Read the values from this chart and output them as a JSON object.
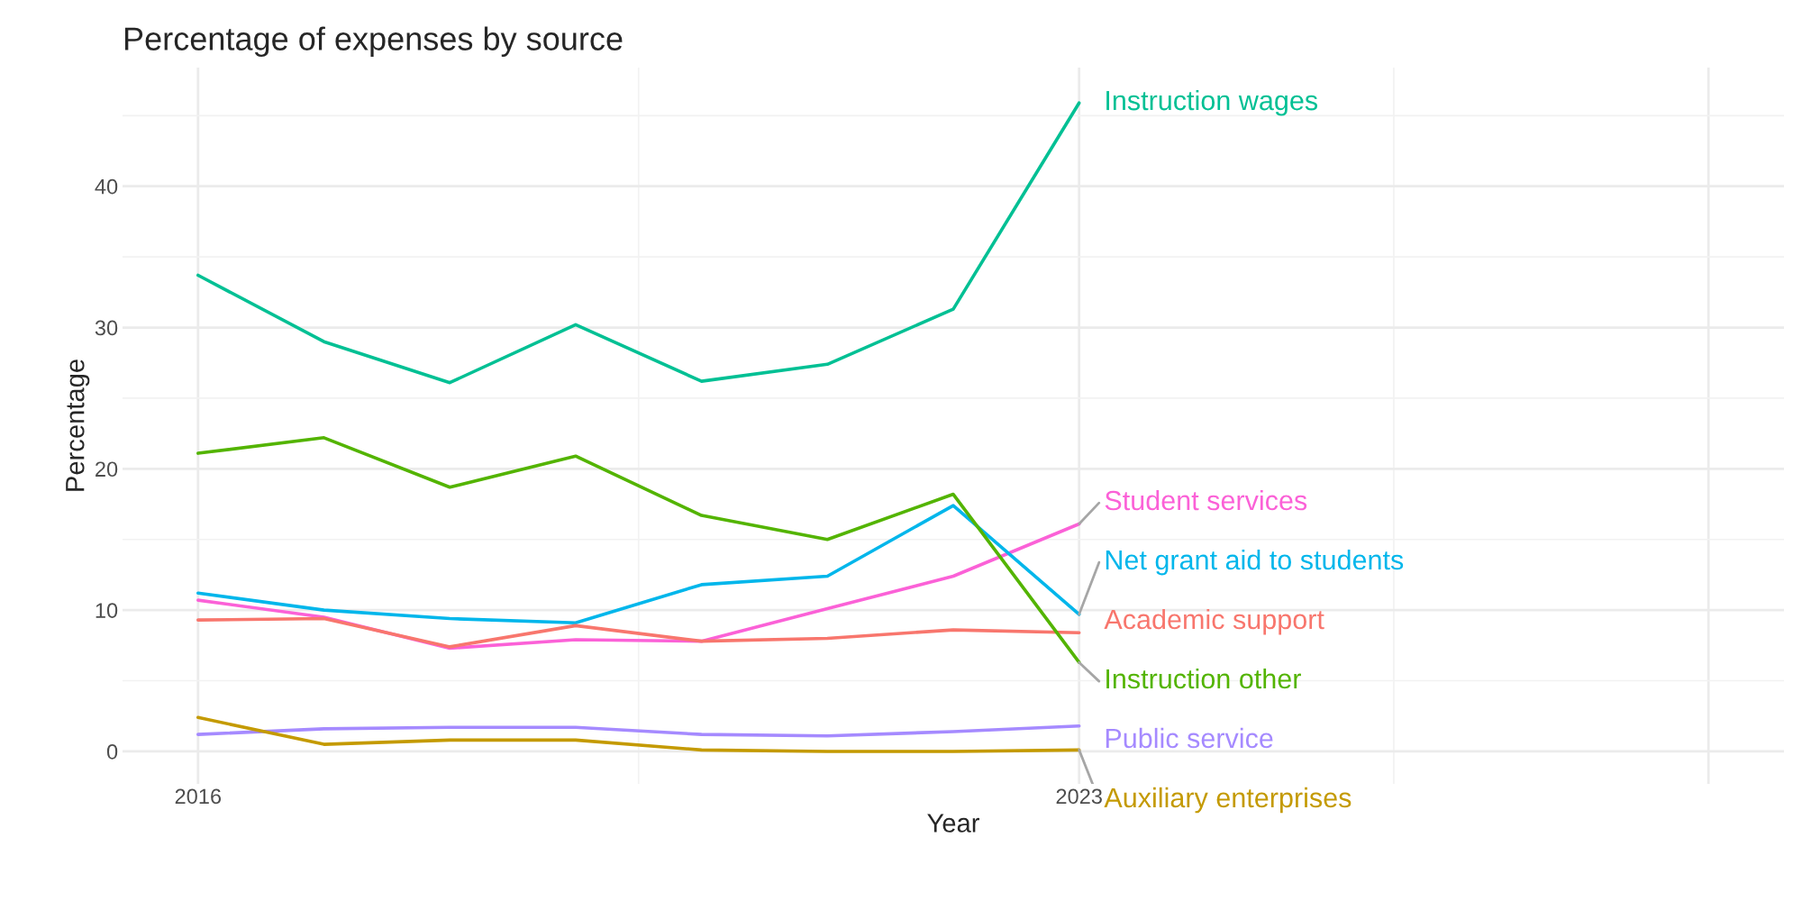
{
  "chart_data": {
    "type": "line",
    "title": "Percentage of expenses by source",
    "xlabel": "Year",
    "ylabel": "Percentage",
    "x": [
      2016,
      2017,
      2018,
      2019,
      2020,
      2021,
      2022,
      2023
    ],
    "series": [
      {
        "name": "Instruction wages",
        "color": "#00c094",
        "values": [
          33.7,
          29.0,
          26.1,
          30.2,
          26.2,
          27.4,
          31.3,
          45.9
        ]
      },
      {
        "name": "Student services",
        "color": "#fb61d7",
        "values": [
          10.7,
          9.5,
          7.3,
          7.9,
          7.8,
          10.1,
          12.4,
          16.1
        ]
      },
      {
        "name": "Net grant aid to students",
        "color": "#00b6eb",
        "values": [
          11.2,
          10.0,
          9.4,
          9.1,
          11.8,
          12.4,
          17.4,
          9.7
        ]
      },
      {
        "name": "Academic support",
        "color": "#f8766d",
        "values": [
          9.3,
          9.4,
          7.4,
          8.9,
          7.8,
          8.0,
          8.6,
          8.4
        ]
      },
      {
        "name": "Instruction other",
        "color": "#53b400",
        "values": [
          21.1,
          22.2,
          18.7,
          20.9,
          16.7,
          15.0,
          18.2,
          6.3
        ]
      },
      {
        "name": "Public service",
        "color": "#a58aff",
        "values": [
          1.2,
          1.6,
          1.7,
          1.7,
          1.2,
          1.1,
          1.4,
          1.8
        ]
      },
      {
        "name": "Auxiliary enterprises",
        "color": "#c49a00",
        "values": [
          2.4,
          0.5,
          0.8,
          0.8,
          0.1,
          0.0,
          0.0,
          0.1
        ]
      }
    ],
    "xlim": [
      2015.4,
      2028.6
    ],
    "xticks": [
      2016,
      2023,
      {
        "value": 2028,
        "label": null
      }
    ],
    "ylim": [
      -2.3,
      48.4
    ],
    "yticks": [
      0,
      10,
      20,
      30,
      40
    ],
    "grid": true,
    "legend": false,
    "line_style": "solid",
    "marker": "none"
  }
}
